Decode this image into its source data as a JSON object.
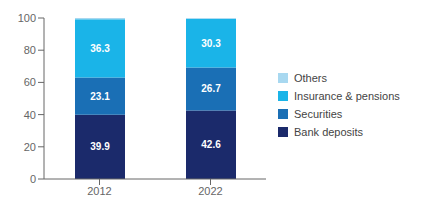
{
  "chart_data": {
    "type": "bar",
    "stacked": true,
    "categories": [
      "2012",
      "2022"
    ],
    "series": [
      {
        "name": "Bank deposits",
        "color": "#1b2a6b",
        "values": [
          39.9,
          42.6
        ],
        "data_labels": true
      },
      {
        "name": "Securities",
        "color": "#1a6fb5",
        "values": [
          23.1,
          26.7
        ],
        "data_labels": true
      },
      {
        "name": "Insurance & pensions",
        "color": "#1ab4e8",
        "values": [
          36.3,
          30.3
        ],
        "data_labels": true
      },
      {
        "name": "Others",
        "color": "#a8d8f0",
        "values": [
          0.7,
          0.4
        ],
        "data_labels": false
      }
    ],
    "ylim": [
      0,
      100
    ],
    "yticks": [
      0,
      20,
      40,
      60,
      80,
      100
    ],
    "grid": false,
    "legend": "right"
  }
}
